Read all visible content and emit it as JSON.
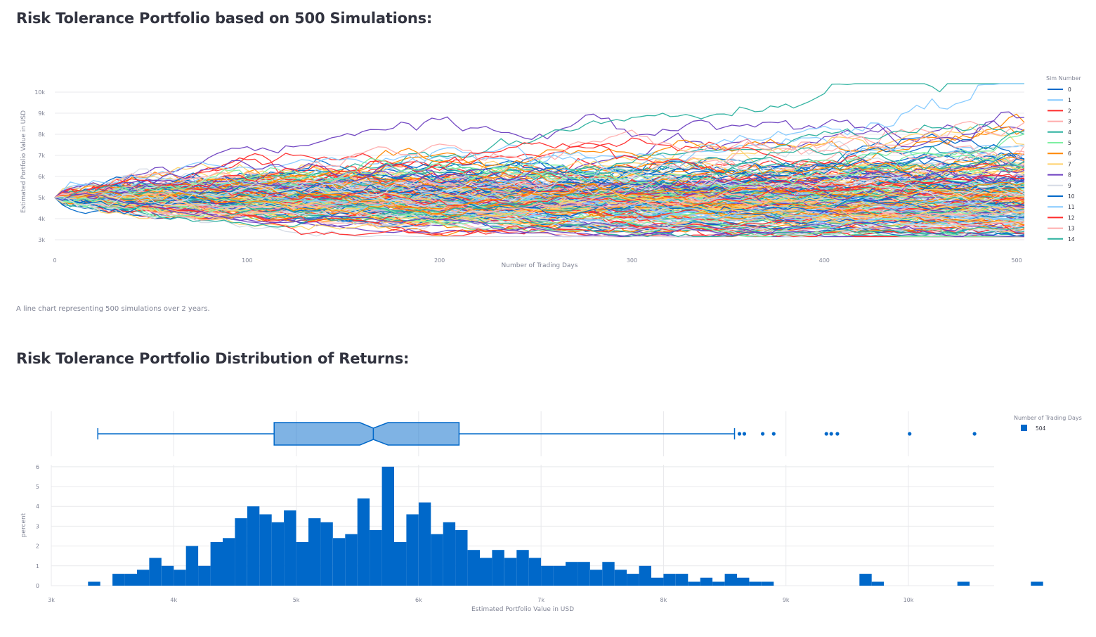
{
  "page": {
    "title1": "Risk Tolerance Portfolio based on 500 Simulations:",
    "caption": "A line chart representing 500 simulations over 2 years.",
    "title2": "Risk Tolerance Portfolio Distribution of Returns:"
  },
  "chart_data": [
    {
      "type": "line",
      "title": "",
      "xlabel": "Number of Trading Days",
      "ylabel": "Estimated Portfolio Value in USD",
      "xlim": [
        0,
        504
      ],
      "ylim": [
        2700,
        10700
      ],
      "x_ticks": [
        0,
        100,
        200,
        300,
        400,
        500
      ],
      "x_tick_labels": [
        "0",
        "100",
        "200",
        "300",
        "400",
        "500"
      ],
      "y_ticks": [
        3000,
        4000,
        5000,
        6000,
        7000,
        8000,
        9000,
        10000
      ],
      "y_tick_labels": [
        "3k",
        "4k",
        "5k",
        "6k",
        "7k",
        "8k",
        "9k",
        "10k"
      ],
      "grid": true,
      "legend_title": "Sim Number",
      "legend_placement": "right",
      "start_value": 5000,
      "num_series": 500,
      "series": [
        {
          "name": "0",
          "color": "#0068c9"
        },
        {
          "name": "1",
          "color": "#83c9ff"
        },
        {
          "name": "2",
          "color": "#ff2b2b"
        },
        {
          "name": "3",
          "color": "#ffabab"
        },
        {
          "name": "4",
          "color": "#29b09d"
        },
        {
          "name": "5",
          "color": "#7defa1"
        },
        {
          "name": "6",
          "color": "#ff8700"
        },
        {
          "name": "7",
          "color": "#ffd16a"
        },
        {
          "name": "8",
          "color": "#6d3fc0"
        },
        {
          "name": "9",
          "color": "#d5dae5"
        },
        {
          "name": "10",
          "color": "#0068c9"
        },
        {
          "name": "11",
          "color": "#83c9ff"
        },
        {
          "name": "12",
          "color": "#ff2b2b"
        },
        {
          "name": "13",
          "color": "#ffabab"
        },
        {
          "name": "14",
          "color": "#29b09d"
        }
      ]
    },
    {
      "type": "box",
      "orientation": "horizontal",
      "min": 3380,
      "q1": 4820,
      "median": 5630,
      "q3": 6330,
      "upper_fence": 8580,
      "notch_low": 5520,
      "notch_high": 5750,
      "outliers": [
        8620,
        8660,
        8810,
        8900,
        9330,
        9370,
        9420,
        10010,
        10540
      ],
      "xlim": [
        3000,
        10700
      ],
      "legend_title": "Number of Trading Days",
      "legend_label": "504",
      "color": "#0068c9"
    },
    {
      "type": "bar",
      "subtype": "histogram",
      "xlabel": "Estimated Portfolio Value in USD",
      "ylabel": "percent",
      "bin_start": 3300,
      "bin_width": 100,
      "values": [
        0.2,
        0,
        0.6,
        0.6,
        0.8,
        1.4,
        1.0,
        0.8,
        2.0,
        1.0,
        2.2,
        2.4,
        3.4,
        4.0,
        3.6,
        3.2,
        3.8,
        2.2,
        3.4,
        3.2,
        2.4,
        2.6,
        4.4,
        2.8,
        6.0,
        2.2,
        3.6,
        4.2,
        2.6,
        3.2,
        2.8,
        1.8,
        1.4,
        1.8,
        1.4,
        1.8,
        1.4,
        1.0,
        1.0,
        1.2,
        1.2,
        0.8,
        1.2,
        0.8,
        0.6,
        1.0,
        0.4,
        0.6,
        0.6,
        0.2,
        0.4,
        0.2,
        0.6,
        0.4,
        0.2,
        0.2,
        0,
        0,
        0,
        0,
        0,
        0,
        0,
        0.6,
        0.2,
        0,
        0,
        0,
        0,
        0,
        0,
        0.2,
        0,
        0,
        0,
        0,
        0,
        0.2
      ],
      "xlim": [
        3000,
        10700
      ],
      "ylim": [
        0,
        6.1
      ],
      "x_ticks": [
        3000,
        4000,
        5000,
        6000,
        7000,
        8000,
        9000,
        10000
      ],
      "x_tick_labels": [
        "3k",
        "4k",
        "5k",
        "6k",
        "7k",
        "8k",
        "9k",
        "10k"
      ],
      "y_ticks": [
        0,
        1,
        2,
        3,
        4,
        5,
        6
      ],
      "y_tick_labels": [
        "0",
        "1",
        "2",
        "3",
        "4",
        "5",
        "6"
      ],
      "grid": true,
      "color": "#0068c9"
    }
  ]
}
